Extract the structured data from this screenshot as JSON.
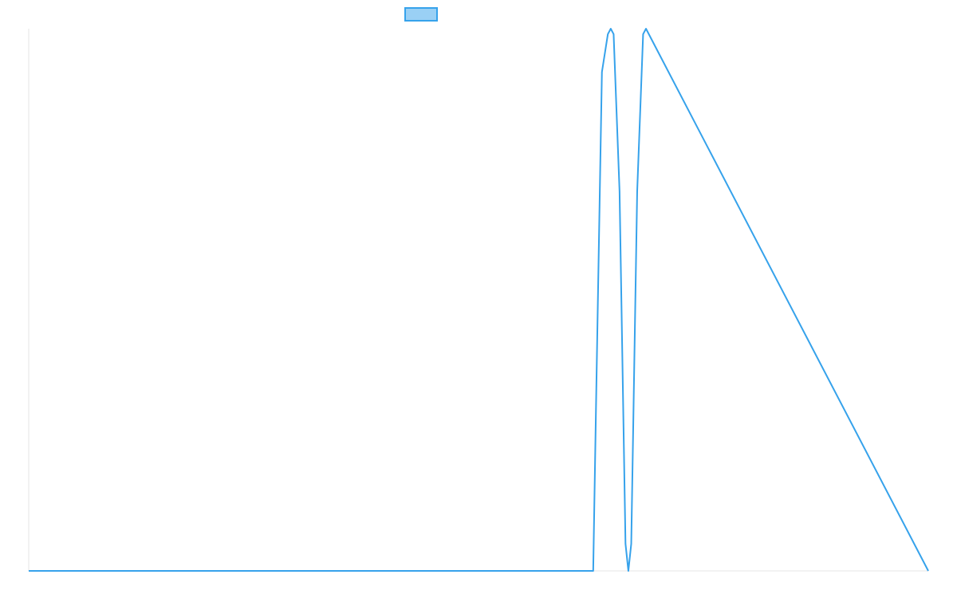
{
  "chart_data": {
    "type": "line",
    "title": "",
    "xlabel": "",
    "ylabel": "",
    "legend": {
      "placement": "top-center",
      "entries": [
        {
          "label": ""
        }
      ]
    },
    "grid": false,
    "xlim": [
      0,
      1
    ],
    "ylim": [
      0,
      1
    ],
    "series": [
      {
        "color": "#36a2eb",
        "fill": "#9ad0f5",
        "x": [
          0.0,
          0.6275,
          0.6306,
          0.6372,
          0.6438,
          0.647,
          0.6502,
          0.6568,
          0.6634,
          0.6666,
          0.6698,
          0.6764,
          0.683,
          0.6862,
          1.0
        ],
        "y": [
          0.0,
          0.0,
          0.3,
          0.92,
          0.99,
          1.0,
          0.99,
          0.7,
          0.05,
          0.0,
          0.05,
          0.7,
          0.99,
          1.0,
          0.0
        ]
      }
    ]
  }
}
